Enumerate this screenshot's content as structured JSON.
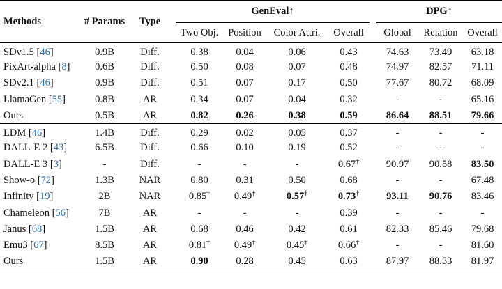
{
  "headers": {
    "methods": "Methods",
    "params": "# Params",
    "type": "Type",
    "geneval": "GenEval",
    "dpg": "DPG",
    "arrow": "↑",
    "geneval_cols": [
      "Two Obj.",
      "Position",
      "Color Attri.",
      "Overall"
    ],
    "dpg_cols": [
      "Global",
      "Relation",
      "Overall"
    ]
  },
  "dagger": "†",
  "groups": [
    [
      {
        "name": "SDv1.5",
        "cite": "46",
        "params": "0.9B",
        "type": "Diff.",
        "ge": [
          "0.38",
          "0.04",
          "0.06",
          "0.43"
        ],
        "ge_bold": [],
        "ge_dag": [],
        "dpg": [
          "74.63",
          "73.49",
          "63.18"
        ],
        "dpg_bold": []
      },
      {
        "name": "PixArt-alpha",
        "cite": "8",
        "params": "0.6B",
        "type": "Diff.",
        "ge": [
          "0.50",
          "0.08",
          "0.07",
          "0.48"
        ],
        "ge_bold": [],
        "ge_dag": [],
        "dpg": [
          "74.97",
          "82.57",
          "71.11"
        ],
        "dpg_bold": []
      },
      {
        "name": "SDv2.1",
        "cite": "46",
        "params": "0.9B",
        "type": "Diff.",
        "ge": [
          "0.51",
          "0.07",
          "0.17",
          "0.50"
        ],
        "ge_bold": [],
        "ge_dag": [],
        "dpg": [
          "77.67",
          "80.72",
          "68.09"
        ],
        "dpg_bold": []
      },
      {
        "name": "LlamaGen",
        "cite": "55",
        "params": "0.8B",
        "type": "AR",
        "ge": [
          "0.34",
          "0.07",
          "0.04",
          "0.32"
        ],
        "ge_bold": [],
        "ge_dag": [],
        "dpg": [
          "-",
          "-",
          "65.16"
        ],
        "dpg_bold": []
      },
      {
        "name": "Ours",
        "cite": "",
        "params": "0.5B",
        "type": "AR",
        "ge": [
          "0.82",
          "0.26",
          "0.38",
          "0.59"
        ],
        "ge_bold": [
          0,
          1,
          2,
          3
        ],
        "ge_dag": [],
        "dpg": [
          "86.64",
          "88.51",
          "79.66"
        ],
        "dpg_bold": [
          0,
          1,
          2
        ]
      }
    ],
    [
      {
        "name": "LDM",
        "cite": "46",
        "params": "1.4B",
        "type": "Diff.",
        "ge": [
          "0.29",
          "0.02",
          "0.05",
          "0.37"
        ],
        "ge_bold": [],
        "ge_dag": [],
        "dpg": [
          "-",
          "-",
          "-"
        ],
        "dpg_bold": []
      },
      {
        "name": "DALL-E 2",
        "cite": "43",
        "params": "6.5B",
        "type": "Diff.",
        "ge": [
          "0.66",
          "0.10",
          "0.19",
          "0.52"
        ],
        "ge_bold": [],
        "ge_dag": [],
        "dpg": [
          "-",
          "-",
          "-"
        ],
        "dpg_bold": []
      },
      {
        "name": "DALL-E 3",
        "cite": "3",
        "params": "-",
        "type": "Diff.",
        "ge": [
          "-",
          "-",
          "-",
          "0.67"
        ],
        "ge_bold": [],
        "ge_dag": [
          3
        ],
        "dpg": [
          "90.97",
          "90.58",
          "83.50"
        ],
        "dpg_bold": [
          2
        ]
      },
      {
        "name": "Show-o",
        "cite": "72",
        "params": "1.3B",
        "type": "NAR",
        "ge": [
          "0.80",
          "0.31",
          "0.50",
          "0.68"
        ],
        "ge_bold": [],
        "ge_dag": [],
        "dpg": [
          "-",
          "-",
          "67.48"
        ],
        "dpg_bold": []
      },
      {
        "name": "Infinity",
        "cite": "19",
        "params": "2B",
        "type": "NAR",
        "ge": [
          "0.85",
          "0.49",
          "0.57",
          "0.73"
        ],
        "ge_bold": [
          2,
          3
        ],
        "ge_dag": [
          0,
          1,
          2,
          3
        ],
        "dpg": [
          "93.11",
          "90.76",
          "83.46"
        ],
        "dpg_bold": [
          0,
          1
        ]
      },
      {
        "name": "Chameleon",
        "cite": "56",
        "params": "7B",
        "type": "AR",
        "ge": [
          "-",
          "-",
          "-",
          "0.39"
        ],
        "ge_bold": [],
        "ge_dag": [],
        "dpg": [
          "-",
          "-",
          "-"
        ],
        "dpg_bold": []
      },
      {
        "name": "Janus",
        "cite": "68",
        "params": "1.5B",
        "type": "AR",
        "ge": [
          "0.68",
          "0.46",
          "0.42",
          "0.61"
        ],
        "ge_bold": [],
        "ge_dag": [],
        "dpg": [
          "82.33",
          "85.46",
          "79.68"
        ],
        "dpg_bold": []
      },
      {
        "name": "Emu3",
        "cite": "67",
        "params": "8.5B",
        "type": "AR",
        "ge": [
          "0.81",
          "0.49",
          "0.45",
          "0.66"
        ],
        "ge_bold": [],
        "ge_dag": [
          0,
          1,
          2,
          3
        ],
        "dpg": [
          "-",
          "-",
          "81.60"
        ],
        "dpg_bold": []
      },
      {
        "name": "Ours",
        "cite": "",
        "params": "1.5B",
        "type": "AR",
        "ge": [
          "0.90",
          "0.28",
          "0.45",
          "0.63"
        ],
        "ge_bold": [
          0
        ],
        "ge_dag": [],
        "dpg": [
          "87.97",
          "88.33",
          "81.97"
        ],
        "dpg_bold": []
      }
    ]
  ]
}
